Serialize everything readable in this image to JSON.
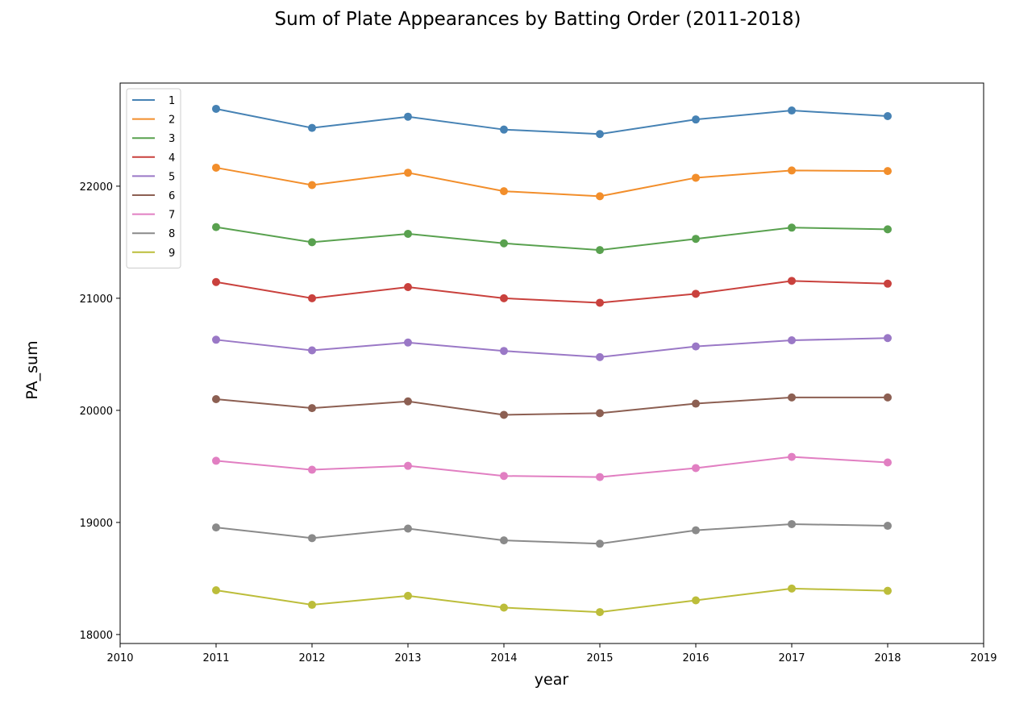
{
  "chart_data": {
    "type": "line",
    "title": "Sum of Plate Appearances by Batting Order (2011-2018)",
    "xlabel": "year",
    "ylabel": "PA_sum",
    "xlim": [
      2010,
      2019
    ],
    "ylim": [
      17920,
      22920
    ],
    "xticks": [
      "2010",
      "2011",
      "2012",
      "2013",
      "2014",
      "2015",
      "2016",
      "2017",
      "2018",
      "2019"
    ],
    "yticks": [
      "18000",
      "19000",
      "20000",
      "21000",
      "22000"
    ],
    "x": [
      2011,
      2012,
      2013,
      2014,
      2015,
      2016,
      2017,
      2018
    ],
    "grid": false,
    "legend_position": "top-left",
    "series": [
      {
        "name": "1",
        "color": "#4682b4",
        "values": [
          22690,
          22520,
          22620,
          22505,
          22465,
          22595,
          22675,
          22625
        ]
      },
      {
        "name": "2",
        "color": "#f28e2b",
        "values": [
          22165,
          22010,
          22120,
          21955,
          21910,
          22075,
          22140,
          22135
        ]
      },
      {
        "name": "3",
        "color": "#59a14f",
        "values": [
          21635,
          21500,
          21575,
          21490,
          21430,
          21530,
          21630,
          21615
        ]
      },
      {
        "name": "4",
        "color": "#c9413d",
        "values": [
          21145,
          21000,
          21100,
          21000,
          20960,
          21040,
          21155,
          21130
        ]
      },
      {
        "name": "5",
        "color": "#9a78c6",
        "values": [
          20630,
          20535,
          20605,
          20530,
          20475,
          20570,
          20625,
          20645
        ]
      },
      {
        "name": "6",
        "color": "#8c5f52",
        "values": [
          20100,
          20020,
          20080,
          19960,
          19975,
          20060,
          20115,
          20115
        ]
      },
      {
        "name": "7",
        "color": "#e17fc2",
        "values": [
          19550,
          19470,
          19505,
          19415,
          19405,
          19485,
          19585,
          19535
        ]
      },
      {
        "name": "8",
        "color": "#8a8a8a",
        "values": [
          18955,
          18860,
          18945,
          18840,
          18810,
          18930,
          18985,
          18970
        ]
      },
      {
        "name": "9",
        "color": "#bcbd3a",
        "values": [
          18395,
          18265,
          18345,
          18240,
          18200,
          18305,
          18410,
          18390
        ]
      }
    ]
  }
}
